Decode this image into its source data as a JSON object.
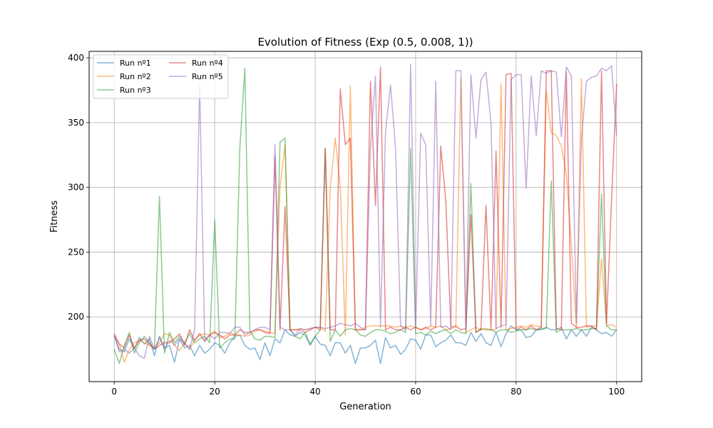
{
  "chart_data": {
    "type": "line",
    "title": "Evolution of Fitness (Exp (0.5, 0.008, 1))",
    "xlabel": "Generation",
    "ylabel": "Fitness",
    "xlim": [
      -5,
      105
    ],
    "ylim": [
      150,
      405
    ],
    "xticks": [
      0,
      20,
      40,
      60,
      80,
      100
    ],
    "yticks": [
      200,
      250,
      300,
      350,
      400
    ],
    "grid": true,
    "legend": "top-left",
    "legend_columns": 2,
    "series": [
      {
        "name": "Run nº1",
        "color": "#1f77b4",
        "values": [
          185,
          175,
          173,
          183,
          175,
          184,
          179,
          183,
          170,
          185,
          176,
          178,
          165,
          183,
          176,
          178,
          170,
          178,
          172,
          175,
          180,
          178,
          172,
          180,
          185,
          186,
          178,
          175,
          176,
          167,
          180,
          170,
          183,
          180,
          190,
          186,
          185,
          188,
          186,
          178,
          185,
          179,
          178,
          170,
          180,
          180,
          172,
          178,
          164,
          176,
          176,
          178,
          182,
          164,
          184,
          176,
          178,
          171,
          175,
          183,
          182,
          175,
          186,
          186,
          177,
          180,
          182,
          186,
          180,
          180,
          178,
          188,
          181,
          187,
          180,
          178,
          188,
          177,
          187,
          193,
          190,
          190,
          184,
          185,
          190,
          190,
          192,
          190,
          190,
          192,
          183,
          190,
          185,
          190,
          185,
          192,
          190,
          187,
          188,
          185,
          190
        ]
      },
      {
        "name": "Run nº2",
        "color": "#ff7f0e",
        "values": [
          185,
          179,
          165,
          175,
          180,
          182,
          180,
          178,
          176,
          180,
          187,
          186,
          178,
          174,
          180,
          175,
          182,
          186,
          187,
          186,
          189,
          184,
          185,
          188,
          186,
          186,
          185,
          186,
          189,
          190,
          189,
          188,
          187,
          300,
          333,
          190,
          190,
          191,
          190,
          191,
          192,
          192,
          189,
          300,
          338,
          300,
          186,
          378,
          190,
          190,
          192,
          193,
          193,
          193,
          193,
          193,
          192,
          193,
          192,
          193,
          192,
          190,
          191,
          193,
          192,
          193,
          190,
          191,
          192,
          384,
          188,
          190,
          192,
          190,
          191,
          190,
          190,
          380,
          190,
          191,
          192,
          193,
          192,
          194,
          193,
          192,
          375,
          342,
          340,
          332,
          310,
          256,
          191,
          384,
          192,
          193,
          193,
          245,
          193,
          194,
          192
        ]
      },
      {
        "name": "Run nº3",
        "color": "#2ca02c",
        "values": [
          175,
          164,
          178,
          188,
          172,
          180,
          185,
          180,
          175,
          293,
          172,
          188,
          180,
          185,
          180,
          187,
          180,
          183,
          185,
          180,
          275,
          176,
          180,
          183,
          183,
          330,
          392,
          189,
          183,
          182,
          185,
          185,
          184,
          335,
          338,
          190,
          185,
          183,
          188,
          179,
          185,
          190,
          330,
          181,
          190,
          185,
          190,
          191,
          190,
          186,
          185,
          188,
          190,
          190,
          189,
          187,
          188,
          190,
          188,
          330,
          187,
          188,
          186,
          189,
          187,
          189,
          190,
          187,
          190,
          188,
          187,
          303,
          188,
          191,
          190,
          190,
          188,
          190,
          190,
          188,
          189,
          190,
          190,
          191,
          190,
          191,
          191,
          305,
          188,
          190,
          190,
          190,
          191,
          190,
          190,
          191,
          191,
          295,
          193,
          190,
          190
        ]
      },
      {
        "name": "Run nº4",
        "color": "#d62728",
        "values": [
          187,
          179,
          176,
          186,
          176,
          182,
          183,
          179,
          175,
          178,
          180,
          180,
          183,
          187,
          178,
          190,
          182,
          187,
          181,
          186,
          188,
          186,
          183,
          186,
          186,
          190,
          188,
          188,
          190,
          190,
          188,
          187,
          324,
          190,
          285,
          190,
          190,
          190,
          188,
          190,
          192,
          190,
          330,
          190,
          190,
          376,
          333,
          338,
          190,
          190,
          190,
          382,
          286,
          393,
          190,
          192,
          190,
          190,
          192,
          190,
          192,
          190,
          192,
          190,
          192,
          332,
          290,
          192,
          193,
          190,
          191,
          279,
          188,
          190,
          286,
          190,
          328,
          192,
          387,
          388,
          190,
          192,
          190,
          193,
          190,
          192,
          390,
          390,
          191,
          190,
          389,
          195,
          192,
          192,
          193,
          193,
          190,
          390,
          195,
          290,
          380
        ]
      },
      {
        "name": "Run nº5",
        "color": "#9467bd",
        "values": [
          186,
          173,
          175,
          172,
          176,
          170,
          168,
          185,
          175,
          184,
          175,
          182,
          178,
          183,
          180,
          175,
          190,
          380,
          182,
          186,
          183,
          188,
          188,
          187,
          192,
          192,
          186,
          188,
          190,
          192,
          192,
          190,
          333,
          192,
          190,
          190,
          186,
          191,
          190,
          191,
          192,
          192,
          191,
          192,
          193,
          195,
          194,
          193,
          195,
          192,
          190,
          330,
          386,
          192,
          343,
          379,
          330,
          193,
          190,
          395,
          191,
          342,
          333,
          193,
          382,
          192,
          193,
          190,
          390,
          390,
          190,
          387,
          338,
          383,
          389,
          350,
          191,
          193,
          194,
          383,
          387,
          387,
          299,
          386,
          340,
          390,
          388,
          390,
          389,
          339,
          393,
          386,
          195,
          338,
          382,
          385,
          386,
          392,
          390,
          394,
          340
        ]
      }
    ]
  }
}
